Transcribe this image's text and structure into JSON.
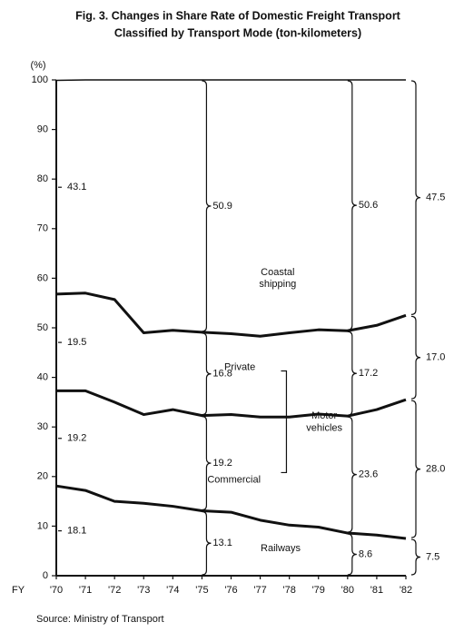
{
  "chart_data": {
    "type": "stacked_line",
    "title_lines": [
      "Fig. 3.   Changes in Share Rate of Domestic Freight Transport",
      "Classified by Transport Mode (ton-kilometers)"
    ],
    "y_unit": "(%)",
    "x_prefix": "FY",
    "categories": [
      "'70",
      "'71",
      "'72",
      "'73",
      "'74",
      "'75",
      "'76",
      "'77",
      "'78",
      "'79",
      "'80",
      "'81",
      "'82"
    ],
    "ylim": [
      0,
      100
    ],
    "yticks": [
      0,
      10,
      20,
      30,
      40,
      50,
      60,
      70,
      80,
      90,
      100
    ],
    "series": [
      {
        "name": "Railways",
        "color": "#111111",
        "line_width": 3,
        "values": [
          18.1,
          17.2,
          15,
          14.6,
          14,
          13.1,
          12.8,
          11.2,
          10.2,
          9.8,
          8.6,
          8.2,
          7.5
        ],
        "value_labels": [
          "18.1",
          null,
          null,
          null,
          null,
          "13.1",
          null,
          null,
          null,
          null,
          "8.6",
          null,
          "7.5"
        ]
      },
      {
        "name": "Commercial",
        "color": "#111111",
        "line_width": 3,
        "values": [
          19.2,
          20.1,
          20,
          17.9,
          19.5,
          19.2,
          19.7,
          20.8,
          21.8,
          22.8,
          23.6,
          25.3,
          28.0
        ],
        "value_labels": [
          "19.2",
          null,
          null,
          null,
          null,
          "19.2",
          null,
          null,
          null,
          null,
          "23.6",
          null,
          "28.0"
        ]
      },
      {
        "name": "Private",
        "color": "#111111",
        "line_width": 3,
        "values": [
          19.5,
          19.7,
          20.7,
          16.5,
          16,
          16.8,
          16.3,
          16.3,
          17,
          17,
          17.2,
          17,
          17.0
        ],
        "value_labels": [
          "19.5",
          null,
          null,
          null,
          null,
          "16.8",
          null,
          null,
          null,
          null,
          "17.2",
          null,
          "17.0"
        ]
      },
      {
        "name": "Coastal shipping",
        "color": "#111111",
        "line_width": 1.5,
        "values": [
          43.1,
          43,
          44.3,
          51,
          50.5,
          50.9,
          51.2,
          51.7,
          51,
          50.4,
          50.6,
          49.5,
          47.5
        ],
        "value_labels": [
          "43.1",
          null,
          null,
          null,
          null,
          "50.9",
          null,
          null,
          null,
          null,
          "50.6",
          null,
          "47.5"
        ]
      }
    ],
    "annotation": "Motor vehicles",
    "source": "Source:  Ministry of Transport"
  }
}
